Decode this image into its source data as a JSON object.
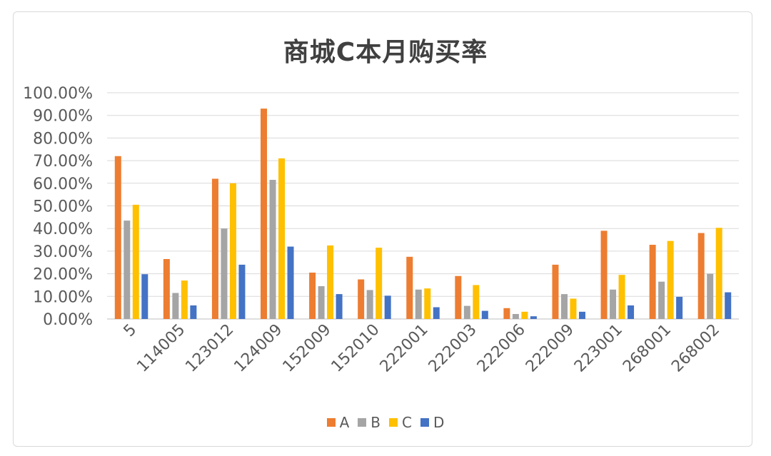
{
  "chart_data": {
    "type": "bar",
    "title": "商城C本月购买率",
    "xlabel": "",
    "ylabel": "",
    "ylim": [
      0,
      100
    ],
    "ytick_step": 10,
    "ytick_labels": [
      "0.00%",
      "10.00%",
      "20.00%",
      "30.00%",
      "40.00%",
      "50.00%",
      "60.00%",
      "70.00%",
      "80.00%",
      "90.00%",
      "100.00%"
    ],
    "grid": true,
    "legend_position": "bottom",
    "categories": [
      "5",
      "114005",
      "123012",
      "124009",
      "152009",
      "152010",
      "222001",
      "222003",
      "222006",
      "222009",
      "223001",
      "268001",
      "268002"
    ],
    "series": [
      {
        "name": "A",
        "color": "#ED7D31",
        "values": [
          72,
          26.5,
          62,
          93,
          20.5,
          17.5,
          27.5,
          19,
          4.8,
          24,
          39,
          32.8,
          38
        ]
      },
      {
        "name": "B",
        "color": "#A5A5A5",
        "values": [
          43.5,
          11.5,
          40,
          61.5,
          14.5,
          12.8,
          13,
          5.8,
          2.2,
          11,
          13,
          16.5,
          20
        ]
      },
      {
        "name": "C",
        "color": "#FFC000",
        "values": [
          50.5,
          17,
          60,
          71,
          32.5,
          31.5,
          13.5,
          15,
          3.2,
          9,
          19.5,
          34.5,
          40.3
        ]
      },
      {
        "name": "D",
        "color": "#4472C4",
        "values": [
          19.8,
          6,
          24,
          32,
          11,
          10.3,
          5.2,
          3.6,
          1.2,
          3.2,
          6,
          9.8,
          11.8
        ]
      }
    ]
  }
}
